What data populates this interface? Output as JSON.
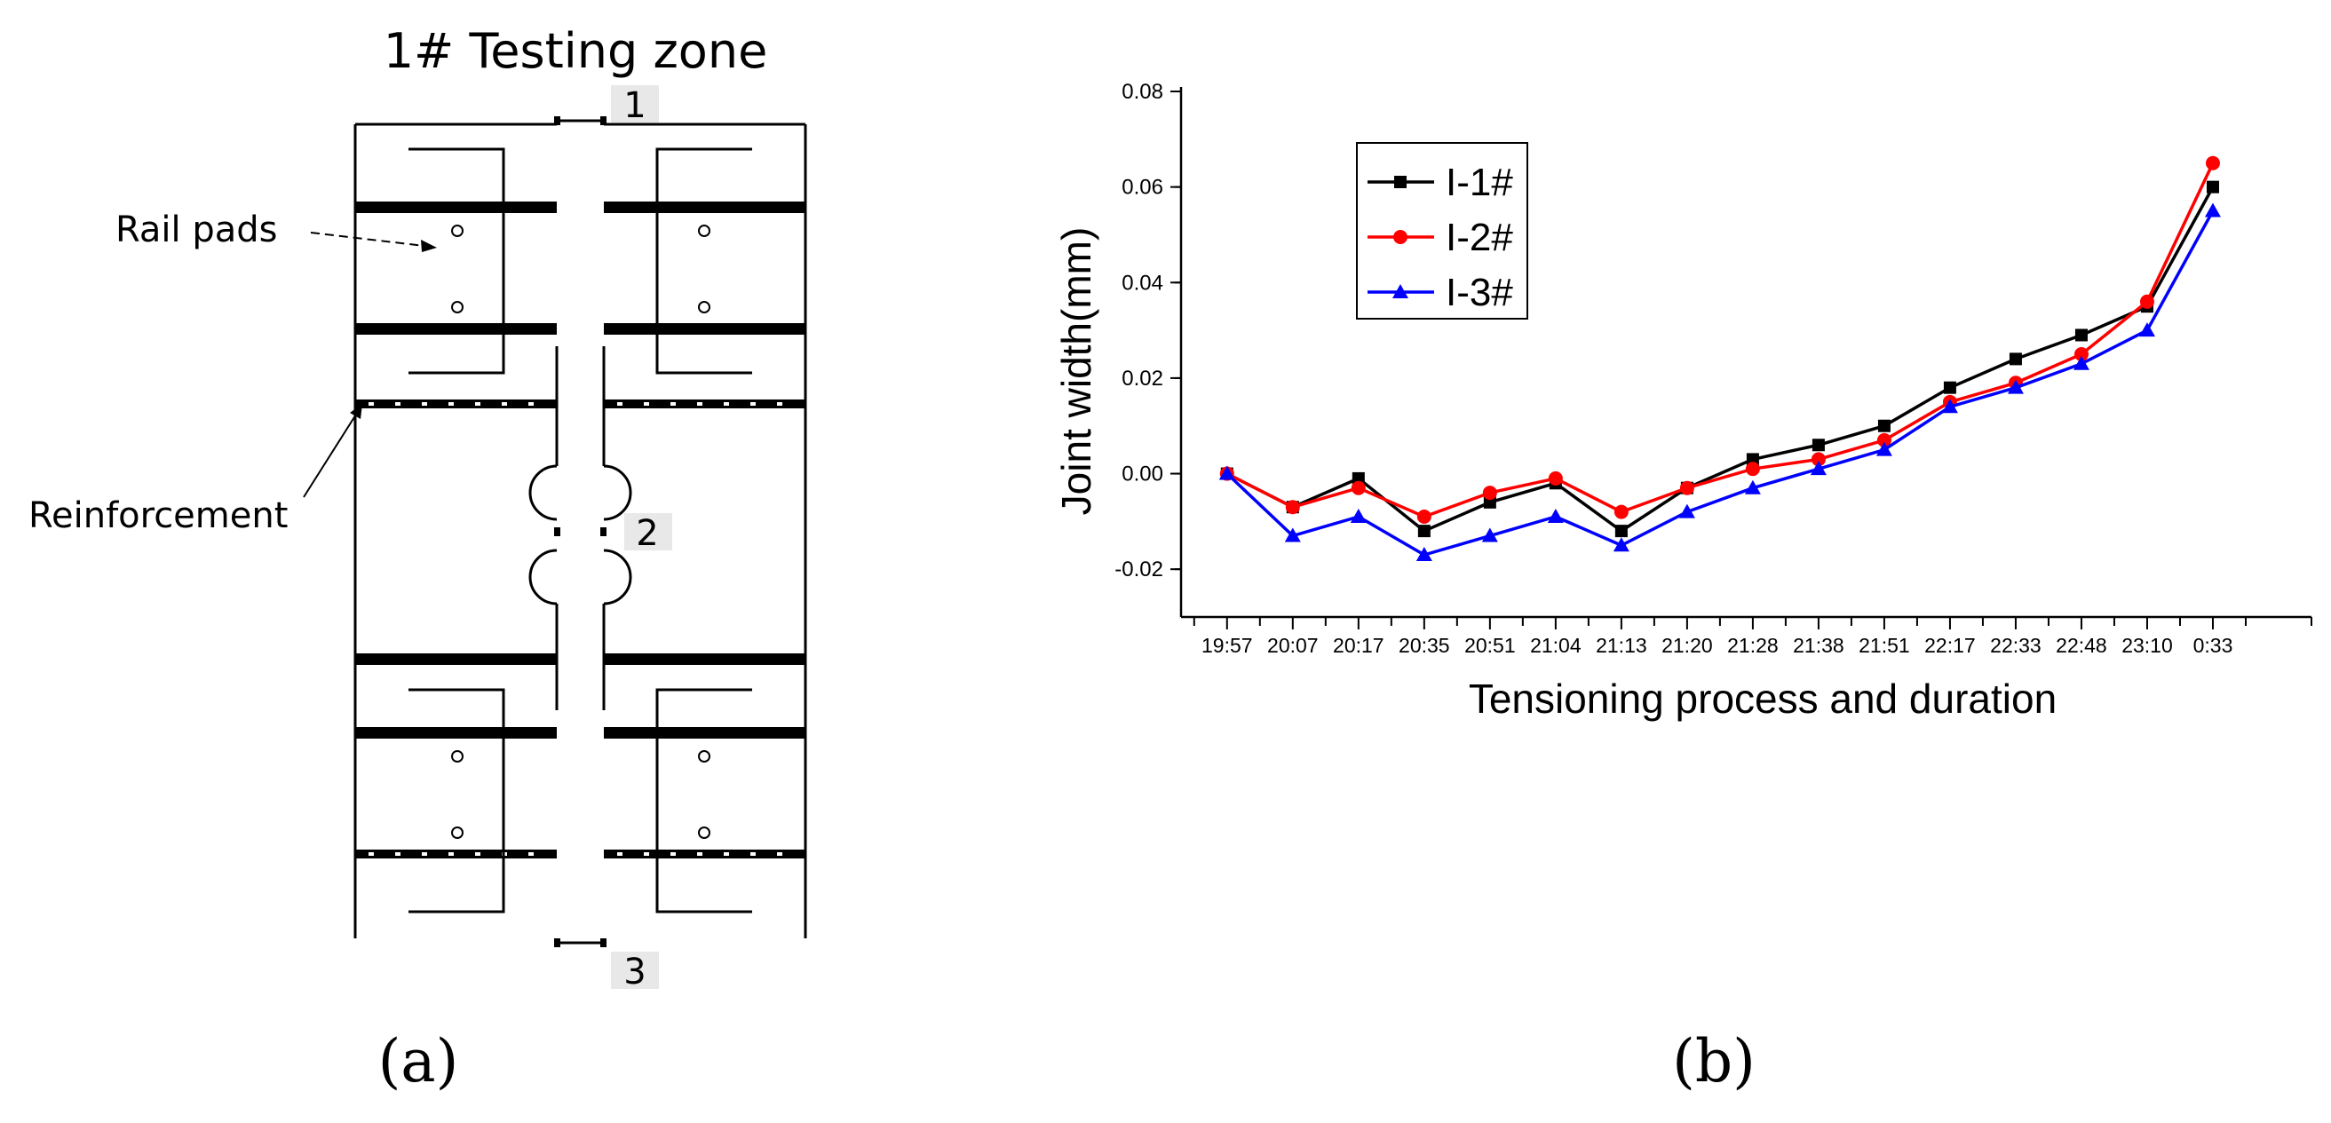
{
  "panel_a": {
    "title": "1# Testing zone",
    "labels": {
      "rail_pads": "Rail pads",
      "reinforcement": "Reinforcement",
      "point_1": "1",
      "point_2": "2",
      "point_3": "3"
    },
    "panel_label": "(a)"
  },
  "panel_b": {
    "panel_label": "(b)"
  },
  "chart_data": {
    "type": "line",
    "title": "",
    "xlabel": "Tensioning process and duration",
    "ylabel": "Joint width(mm)",
    "categories": [
      "19:57",
      "20:07",
      "20:17",
      "20:35",
      "20:51",
      "21:04",
      "21:13",
      "21:20",
      "21:28",
      "21:38",
      "21:51",
      "22:17",
      "22:33",
      "22:48",
      "23:10",
      "0:33"
    ],
    "ylim": [
      -0.03,
      0.08
    ],
    "yticks": [
      "-0.02",
      "0.00",
      "0.02",
      "0.04",
      "0.06",
      "0.08"
    ],
    "yticks_values": [
      -0.02,
      0.0,
      0.02,
      0.04,
      0.06,
      0.08
    ],
    "grid": false,
    "legend_position": "top-left",
    "series": [
      {
        "name": "I-1#",
        "color": "#000000",
        "marker": "square",
        "values": [
          0.0,
          -0.007,
          -0.001,
          -0.012,
          -0.006,
          -0.002,
          -0.012,
          -0.003,
          0.003,
          0.006,
          0.01,
          0.018,
          0.024,
          0.029,
          0.035,
          0.06
        ]
      },
      {
        "name": "I-2#",
        "color": "#ff0000",
        "marker": "circle",
        "values": [
          0.0,
          -0.007,
          -0.003,
          -0.009,
          -0.004,
          -0.001,
          -0.008,
          -0.003,
          0.001,
          0.003,
          0.007,
          0.015,
          0.019,
          0.025,
          0.036,
          0.065
        ]
      },
      {
        "name": "I-3#",
        "color": "#0000ff",
        "marker": "triangle",
        "values": [
          0.0,
          -0.013,
          -0.009,
          -0.017,
          -0.013,
          -0.009,
          -0.015,
          -0.008,
          -0.003,
          0.001,
          0.005,
          0.014,
          0.018,
          0.023,
          0.03,
          0.055
        ]
      }
    ]
  }
}
